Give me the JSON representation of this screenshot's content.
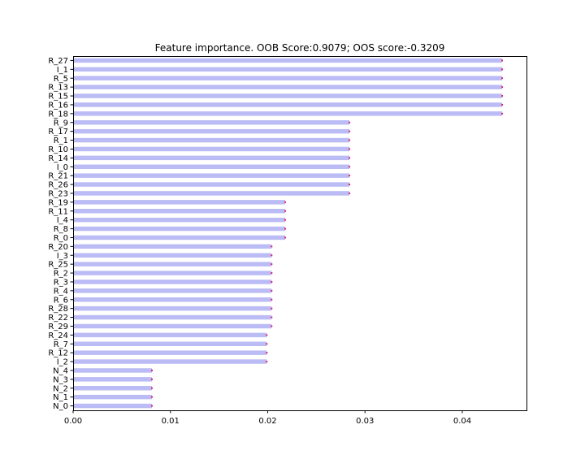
{
  "chart_data": {
    "type": "bar",
    "orientation": "horizontal",
    "title": "Feature importance. OOB Score:0.9079; OOS score:-0.3209",
    "xlabel": "",
    "ylabel": "",
    "xlim": [
      0.0,
      0.0466
    ],
    "xticks": [
      "0.00",
      "0.01",
      "0.02",
      "0.03",
      "0.04"
    ],
    "xtick_values": [
      0.0,
      0.01,
      0.02,
      0.03,
      0.04
    ],
    "grid": false,
    "legend": "none",
    "bar_color": "#bbbbf5",
    "error_color": "#e0206a",
    "categories": [
      "R_27",
      "I_1",
      "R_5",
      "R_13",
      "R_15",
      "R_16",
      "R_18",
      "R_9",
      "R_17",
      "R_1",
      "R_10",
      "R_14",
      "I_0",
      "R_21",
      "R_26",
      "R_23",
      "R_19",
      "R_11",
      "I_4",
      "R_8",
      "R_0",
      "R_20",
      "I_3",
      "R_25",
      "R_2",
      "R_3",
      "R_4",
      "R_6",
      "R_28",
      "R_22",
      "R_29",
      "R_24",
      "R_7",
      "R_12",
      "I_2",
      "N_4",
      "N_3",
      "N_2",
      "N_1",
      "N_0"
    ],
    "values": [
      0.0441,
      0.0441,
      0.0441,
      0.0441,
      0.0441,
      0.0441,
      0.0441,
      0.0284,
      0.0284,
      0.0284,
      0.0284,
      0.0284,
      0.0284,
      0.0284,
      0.0284,
      0.0284,
      0.0218,
      0.0218,
      0.0218,
      0.0218,
      0.0218,
      0.0204,
      0.0204,
      0.0204,
      0.0204,
      0.0204,
      0.0204,
      0.0204,
      0.0204,
      0.0204,
      0.0204,
      0.0199,
      0.0199,
      0.0199,
      0.0199,
      0.0081,
      0.0081,
      0.0081,
      0.0081,
      0.0081
    ]
  }
}
